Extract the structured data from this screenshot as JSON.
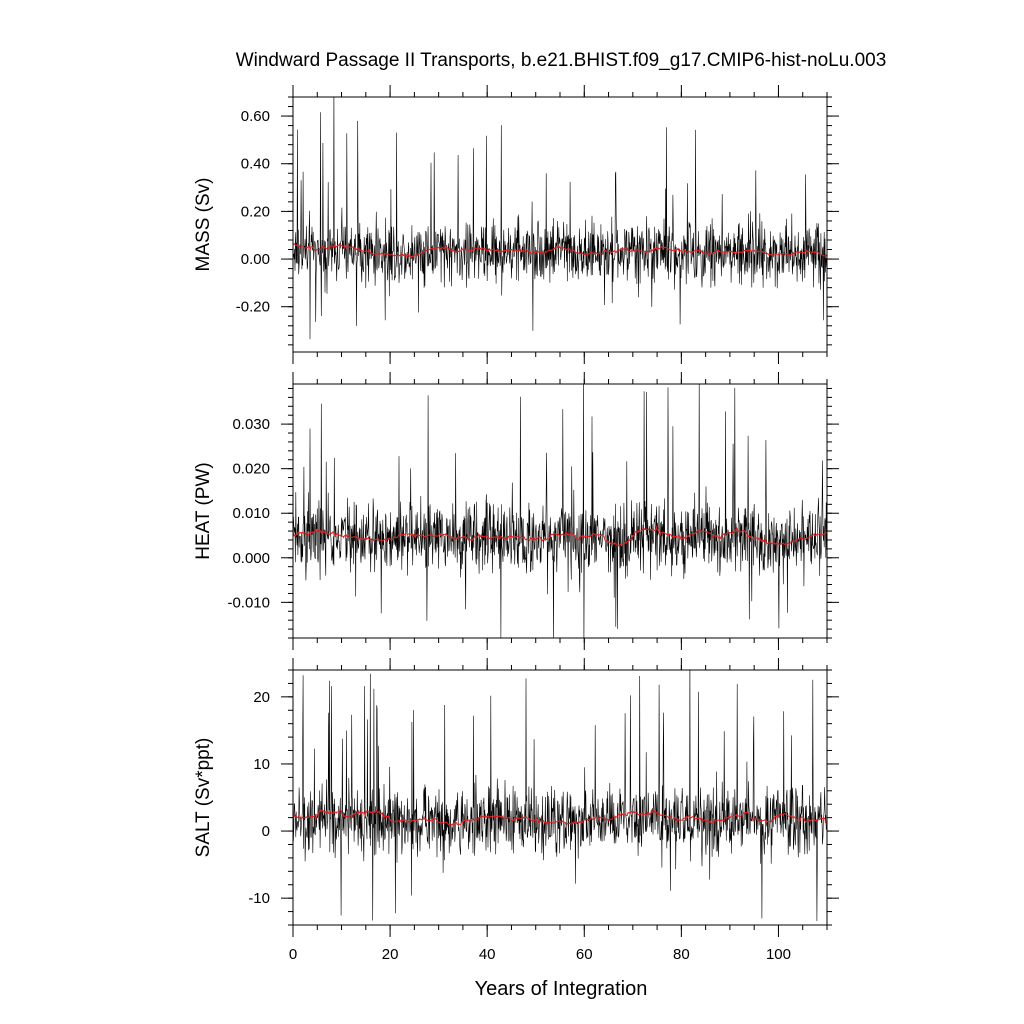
{
  "title": "Windward Passage II Transports, b.e21.BHIST.f09_g17.CMIP6-hist-noLu.003",
  "xlabel": "Years of Integration",
  "colors": {
    "raw": "#000000",
    "smooth": "#e02020"
  },
  "chart_data": [
    {
      "type": "line",
      "ylabel": "MASS (Sv)",
      "xlim": [
        0,
        110
      ],
      "ylim": [
        -0.39,
        0.68
      ],
      "yticks": [
        -0.2,
        0.0,
        0.2,
        0.4,
        0.6
      ],
      "ytick_labels": [
        "-0.20",
        "0.00",
        "0.20",
        "0.40",
        "0.60"
      ],
      "xticks": [
        0,
        20,
        40,
        60,
        80,
        100
      ],
      "xtick_labels": [
        "",
        "",
        "",
        "",
        "",
        ""
      ],
      "baseline": 0.03,
      "spread": 0.09,
      "series": [
        {
          "values": [],
          "points_per_year": 12
        },
        {
          "values": []
        }
      ]
    },
    {
      "type": "line",
      "ylabel": "HEAT (PW)",
      "xlim": [
        0,
        110
      ],
      "ylim": [
        -0.018,
        0.039
      ],
      "yticks": [
        -0.01,
        0.0,
        0.01,
        0.02,
        0.03
      ],
      "ytick_labels": [
        "-0.010",
        "0.000",
        "0.010",
        "0.020",
        "0.030"
      ],
      "xticks": [
        0,
        20,
        40,
        60,
        80,
        100
      ],
      "xtick_labels": [
        "",
        "",
        "",
        "",
        "",
        ""
      ],
      "baseline": 0.0045,
      "spread": 0.0055,
      "series": [
        {
          "values": [],
          "points_per_year": 12
        },
        {
          "values": []
        }
      ]
    },
    {
      "type": "line",
      "ylabel": "SALT (Sv*ppt)",
      "xlim": [
        0,
        110
      ],
      "ylim": [
        -14,
        24
      ],
      "yticks": [
        -10,
        0,
        10,
        20
      ],
      "ytick_labels": [
        "-10",
        "0",
        "10",
        "20"
      ],
      "xticks": [
        0,
        20,
        40,
        60,
        80,
        100
      ],
      "xtick_labels": [
        "0",
        "20",
        "40",
        "60",
        "80",
        "100"
      ],
      "baseline": 1.5,
      "spread": 3.5,
      "series": [
        {
          "values": [],
          "points_per_year": 12
        },
        {
          "values": []
        }
      ]
    }
  ]
}
